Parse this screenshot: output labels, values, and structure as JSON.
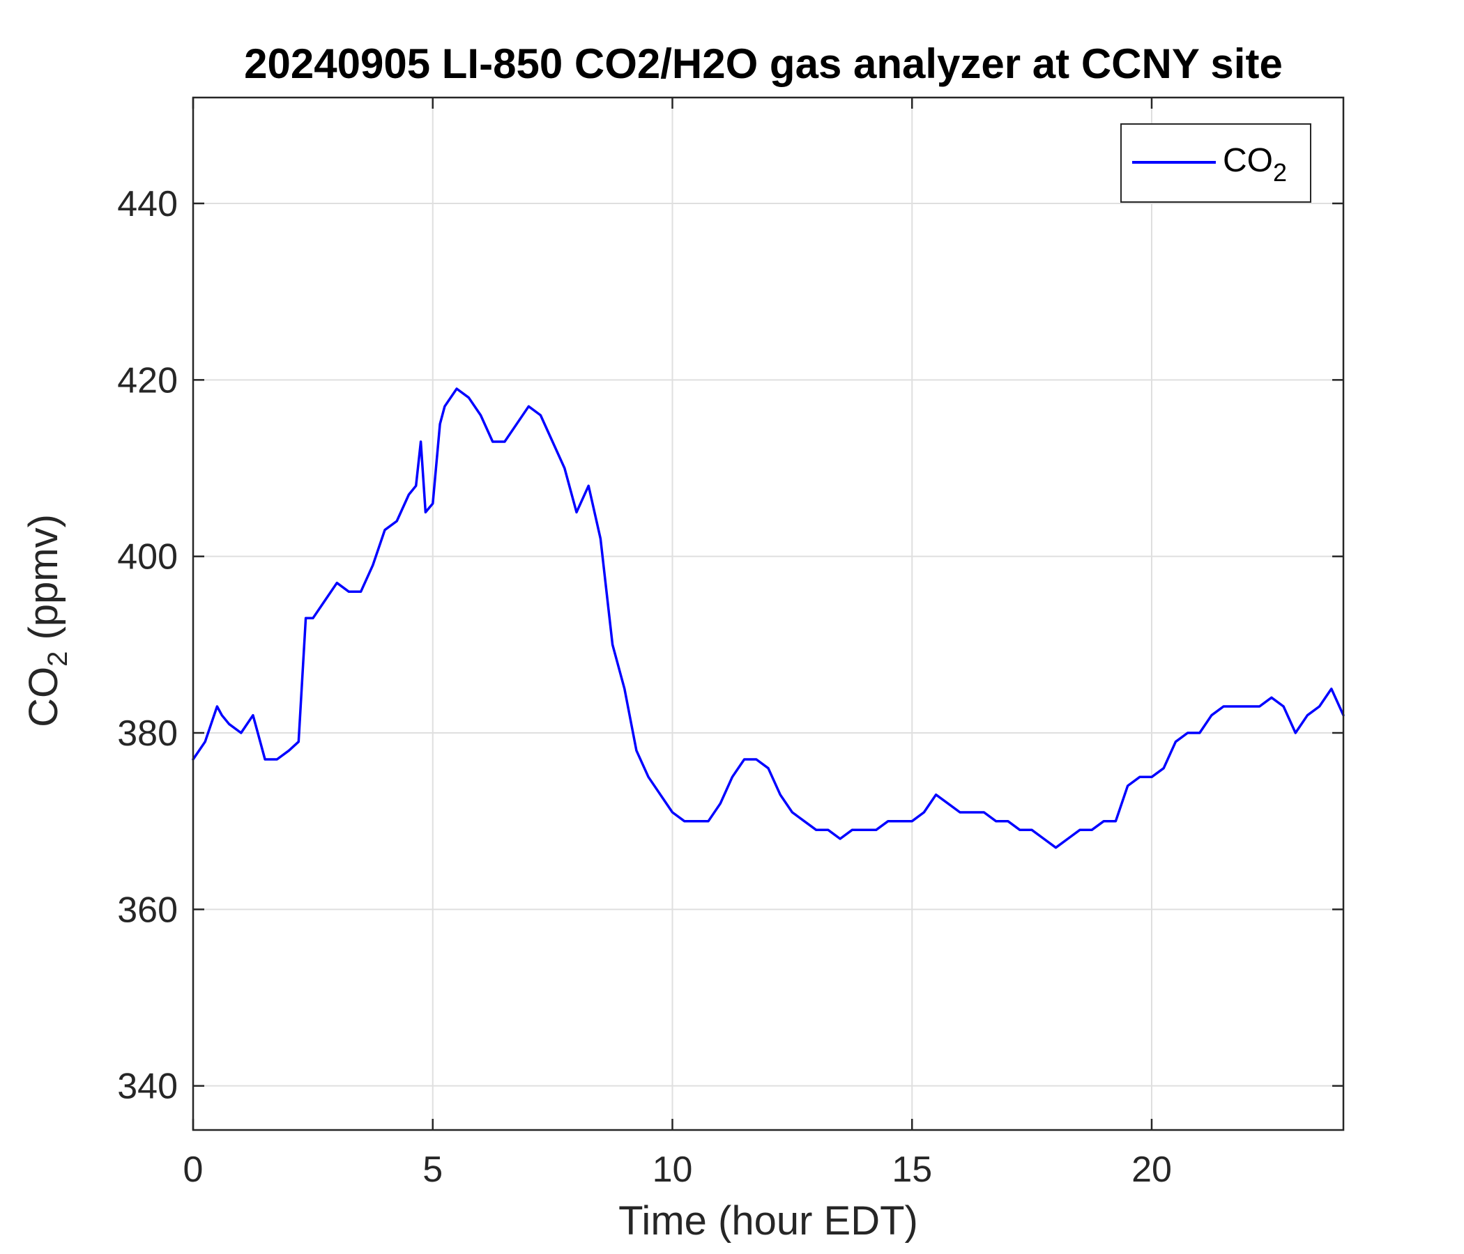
{
  "chart_data": {
    "type": "line",
    "title": "20240905 LI-850 CO2/H2O gas analyzer at CCNY site",
    "xlabel": "Time (hour EDT)",
    "ylabel": {
      "prefix": "CO",
      "subscript": "2",
      "suffix": " (ppmv)"
    },
    "xlim": [
      0,
      24
    ],
    "ylim": [
      335,
      452
    ],
    "xticks": [
      0,
      5,
      10,
      15,
      20
    ],
    "yticks": [
      340,
      360,
      380,
      400,
      420,
      440
    ],
    "grid": true,
    "legend": {
      "position": "top-right",
      "label_prefix": "CO",
      "label_subscript": "2"
    },
    "colors": {
      "series": "#0000ff"
    },
    "series": [
      {
        "name": "CO2",
        "x": [
          0,
          0.25,
          0.5,
          0.6,
          0.75,
          1.0,
          1.25,
          1.35,
          1.5,
          1.75,
          2.0,
          2.2,
          2.35,
          2.5,
          2.75,
          3.0,
          3.25,
          3.5,
          3.75,
          4.0,
          4.25,
          4.5,
          4.65,
          4.75,
          4.85,
          5.0,
          5.15,
          5.25,
          5.5,
          5.75,
          6.0,
          6.25,
          6.5,
          6.75,
          7.0,
          7.25,
          7.5,
          7.75,
          8.0,
          8.25,
          8.5,
          8.75,
          9.0,
          9.25,
          9.5,
          9.75,
          10.0,
          10.25,
          10.5,
          10.75,
          11.0,
          11.25,
          11.5,
          11.75,
          12.0,
          12.25,
          12.5,
          12.75,
          13.0,
          13.25,
          13.5,
          13.75,
          14.0,
          14.25,
          14.5,
          14.75,
          15.0,
          15.25,
          15.5,
          15.75,
          16.0,
          16.25,
          16.5,
          16.75,
          17.0,
          17.25,
          17.5,
          17.75,
          18.0,
          18.25,
          18.5,
          18.75,
          19.0,
          19.25,
          19.5,
          19.75,
          20.0,
          20.25,
          20.5,
          20.75,
          21.0,
          21.25,
          21.5,
          21.75,
          22.0,
          22.25,
          22.5,
          22.75,
          23.0,
          23.25,
          23.5,
          23.75,
          24.0
        ],
        "values": [
          377,
          379,
          383,
          382,
          381,
          380,
          382,
          380,
          377,
          377,
          378,
          379,
          393,
          393,
          395,
          397,
          396,
          396,
          399,
          403,
          404,
          407,
          408,
          413,
          405,
          406,
          415,
          417,
          419,
          418,
          416,
          413,
          413,
          415,
          417,
          416,
          413,
          410,
          405,
          408,
          402,
          390,
          385,
          378,
          375,
          373,
          371,
          370,
          370,
          370,
          372,
          375,
          377,
          377,
          376,
          373,
          371,
          370,
          369,
          369,
          368,
          369,
          369,
          369,
          370,
          370,
          370,
          371,
          373,
          372,
          371,
          371,
          371,
          370,
          370,
          369,
          369,
          368,
          367,
          368,
          369,
          369,
          370,
          370,
          374,
          375,
          375,
          376,
          379,
          380,
          380,
          382,
          383,
          383,
          383,
          383,
          384,
          383,
          380,
          382,
          383,
          385,
          382
        ]
      }
    ]
  }
}
